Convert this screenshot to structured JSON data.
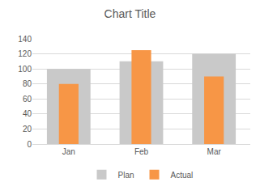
{
  "chart_data": {
    "type": "bar",
    "title": "Chart Title",
    "categories": [
      "Jan",
      "Feb",
      "Mar"
    ],
    "series": [
      {
        "name": "Plan",
        "color": "#c9c9c9",
        "values": [
          100,
          110,
          120
        ]
      },
      {
        "name": "Actual",
        "color": "#f79646",
        "values": [
          80,
          125,
          90
        ]
      }
    ],
    "ylim": [
      0,
      140
    ],
    "yticks": [
      0,
      20,
      40,
      60,
      80,
      100,
      120,
      140
    ],
    "grid": true,
    "legend": "bottom"
  }
}
